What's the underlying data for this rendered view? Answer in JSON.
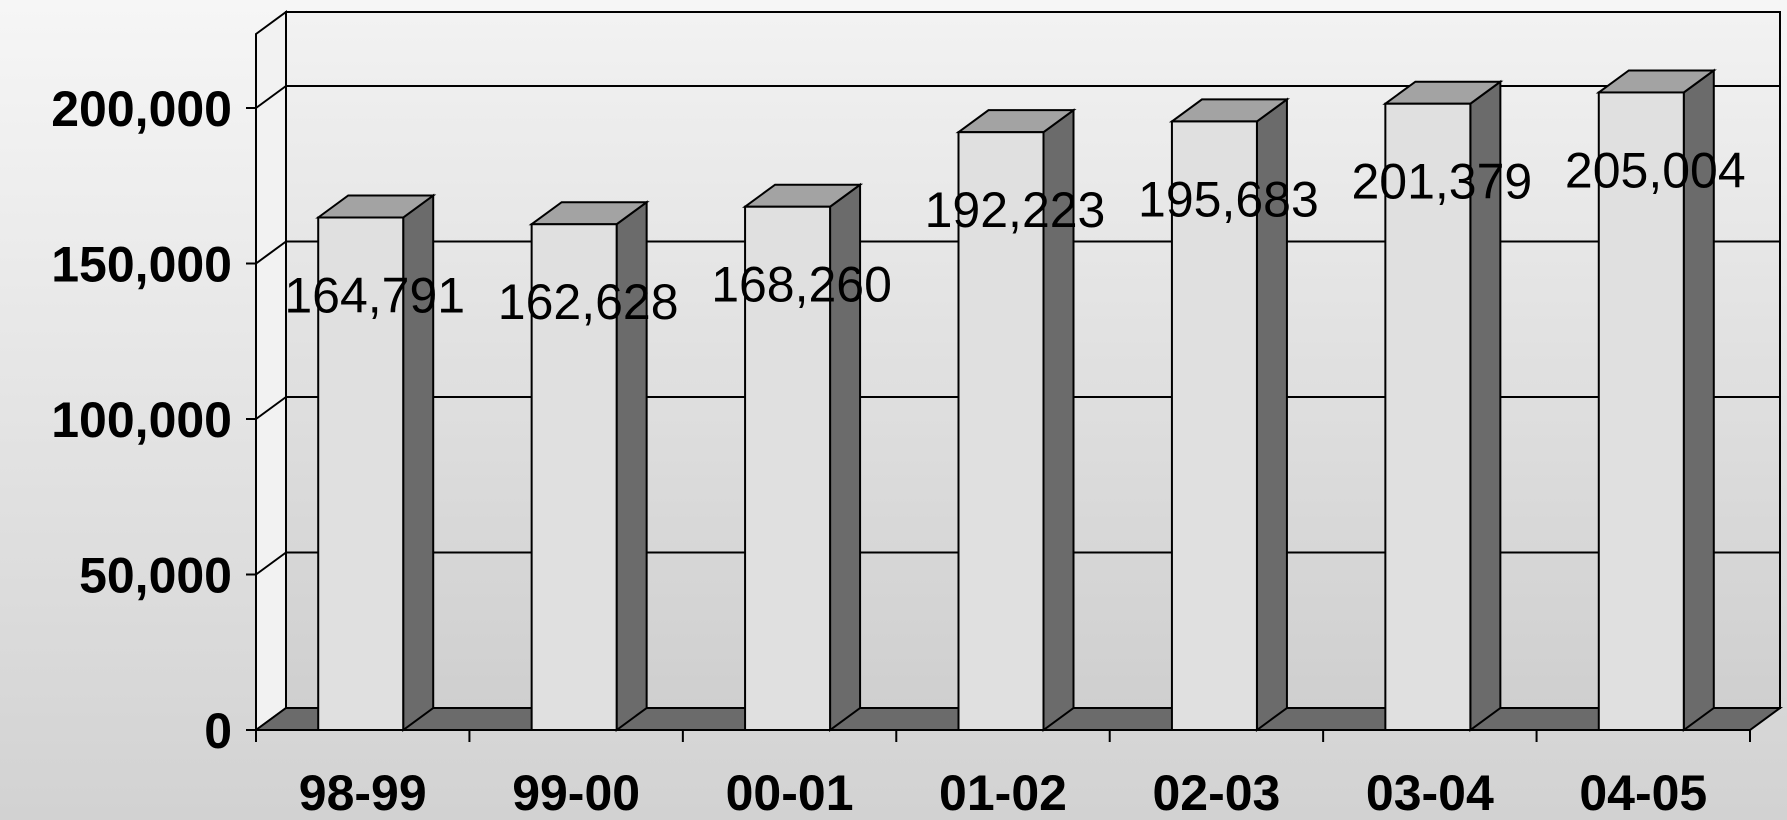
{
  "chart_data": {
    "type": "bar",
    "style": "3d-column",
    "categories": [
      "98-99",
      "99-00",
      "00-01",
      "01-02",
      "02-03",
      "03-04",
      "04-05"
    ],
    "values": [
      164791,
      162628,
      168260,
      192223,
      195683,
      201379,
      205004
    ],
    "data_labels": [
      "164,791",
      "162,628",
      "168,260",
      "192,223",
      "195,683",
      "201,379",
      "205,004"
    ],
    "yticks": [
      0,
      50000,
      100000,
      150000,
      200000
    ],
    "ytick_labels": [
      "0",
      "50,000",
      "100,000",
      "150,000",
      "200,000"
    ],
    "ylim": [
      0,
      230000
    ],
    "grid": true,
    "legend": "none",
    "title": "",
    "xlabel": "",
    "ylabel": "",
    "colors": {
      "bar_front": "#e0e0e0",
      "bar_top": "#a3a3a3",
      "bar_side": "#6b6b6b",
      "floor": "#6b6b6b",
      "wall_top": "#f2f2f2",
      "wall_bottom": "#cfcfcf",
      "outline": "#000000"
    }
  }
}
